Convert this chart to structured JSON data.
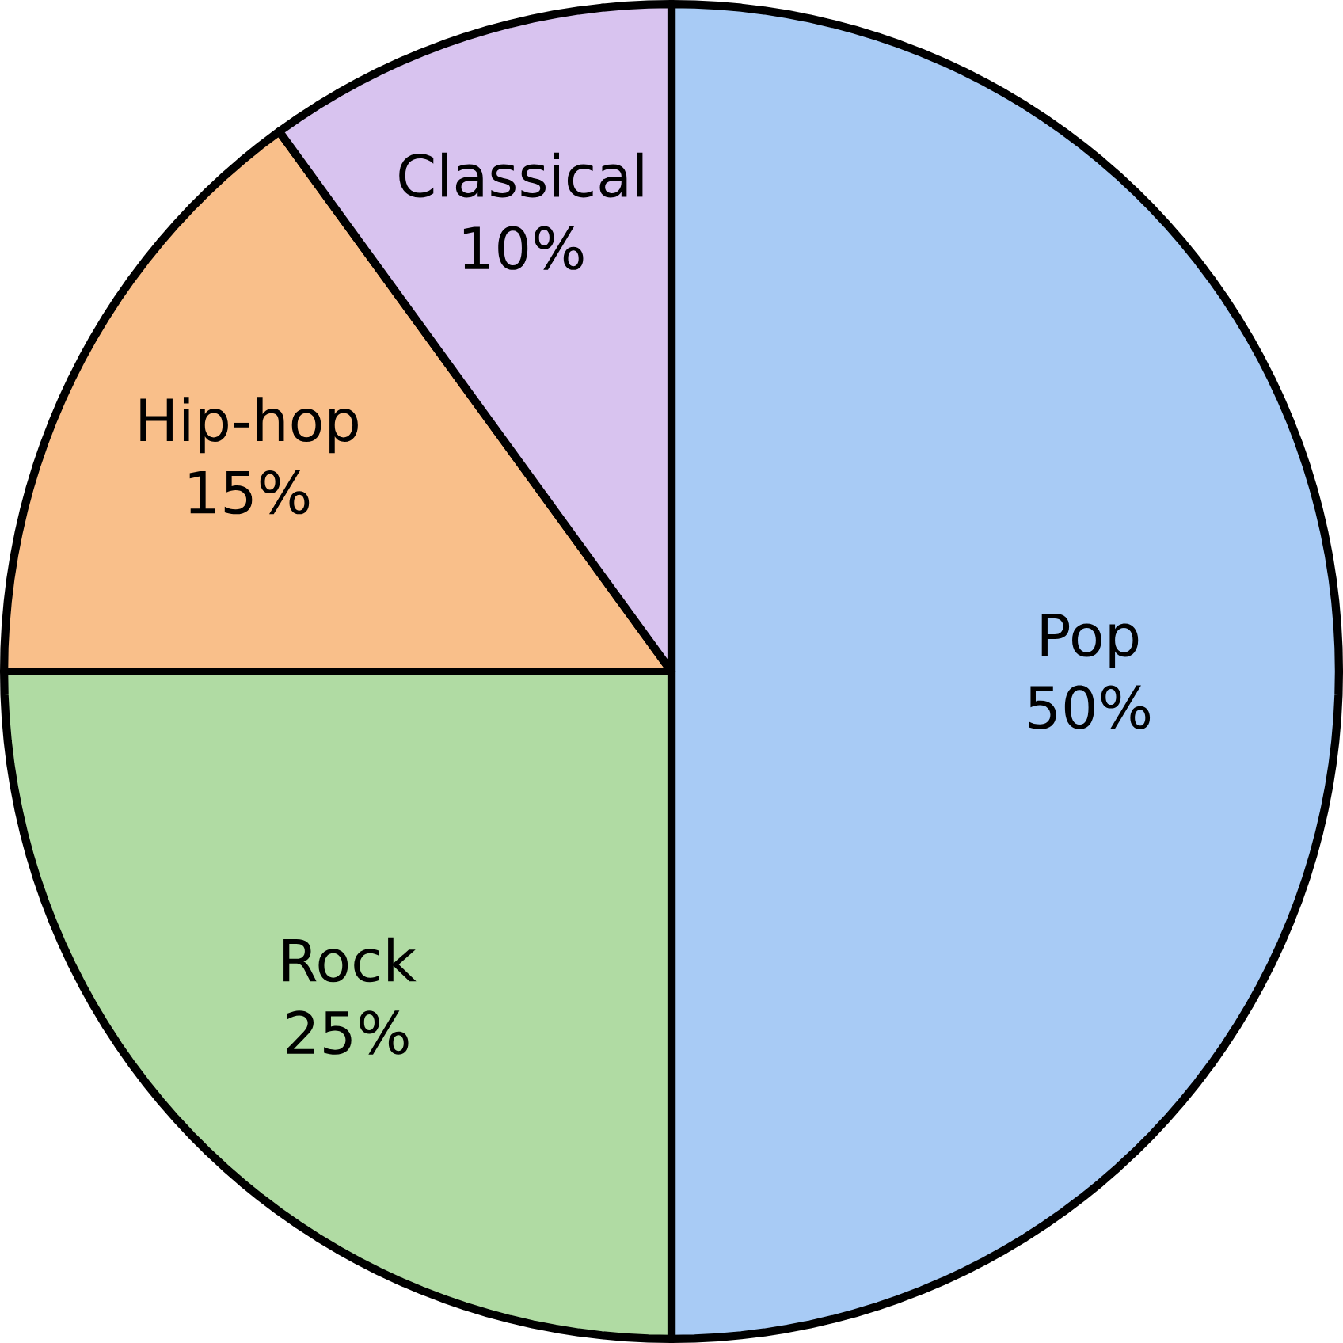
{
  "chart_data": {
    "type": "pie",
    "categories": [
      "Pop",
      "Rock",
      "Hip-hop",
      "Classical"
    ],
    "values": [
      50,
      25,
      15,
      10
    ],
    "value_labels": [
      "50%",
      "25%",
      "15%",
      "10%"
    ],
    "colors": [
      "#a8cbf5",
      "#b0dba3",
      "#f9bf8a",
      "#d8c3ef"
    ]
  }
}
